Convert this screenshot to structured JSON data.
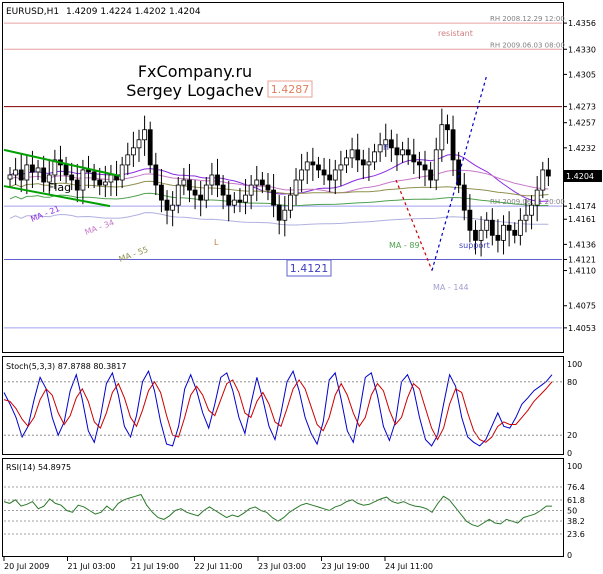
{
  "header": {
    "symbol": "EURUSD,H1",
    "ohlc": "1.4209 1.4224 1.4202 1.4204"
  },
  "watermark": {
    "line1": "FxCompany.ru",
    "line2": "Sergey Logachev"
  },
  "price_axis": {
    "ticks": [
      "1.4356",
      "1.4330",
      "1.4305",
      "1.4273",
      "1.4257",
      "1.4232",
      "1.4204",
      "1.4174",
      "1.4161",
      "1.4136",
      "1.4121",
      "1.4110",
      "1.4075",
      "1.4053"
    ]
  },
  "levels": [
    {
      "price": 1.4356,
      "label": "RH  2008.12.29 12:00",
      "color": "#e8a0a0"
    },
    {
      "price": 1.433,
      "label": "RH  2009.06.03 08:00",
      "color": "#e8a0a0"
    },
    {
      "price": 1.4273,
      "label": "",
      "color": "#800000"
    },
    {
      "price": 1.4174,
      "label": "RH  2009.06.11 20:00",
      "color": "#a0a0f0"
    },
    {
      "price": 1.4121,
      "label": "",
      "color": "#6060d0"
    },
    {
      "price": 1.4053,
      "label": "",
      "color": "#a0a0f0"
    }
  ],
  "annotations": {
    "resistant": "resistant",
    "support": "support",
    "flag": "Flag",
    "h": "H",
    "l": "L",
    "box_high": "1.4287",
    "box_low": "1.4121",
    "ma21": "MA - 21",
    "ma34": "MA - 34",
    "ma55": "MA - 55",
    "ma89": "MA - 89",
    "ma144": "MA - 144"
  },
  "stoch": {
    "title": "Stoch(5,3,3) 87.8788 80.3817",
    "ticks": [
      "100",
      "80",
      "20",
      "0"
    ]
  },
  "rsi": {
    "title": "RSI(14) 54.8975",
    "ticks": [
      "100",
      "76.4",
      "61.8",
      "50",
      "38.2",
      "23.6",
      "0"
    ]
  },
  "time_axis": [
    "20 Jul 2009",
    "21 Jul 03:00",
    "21 Jul 19:00",
    "22 Jul 11:00",
    "23 Jul 03:00",
    "23 Jul 19:00",
    "24 Jul 11:00"
  ],
  "colors": {
    "bullish": "#000000",
    "ma21": "#8a2be2",
    "ma34": "#c878c8",
    "ma55": "#909050",
    "ma89": "#50a050",
    "ma144": "#b0b0e0",
    "stoch_main": "#0000cc",
    "stoch_signal": "#cc0000",
    "rsi": "#2a7a2a",
    "forecast_down": "#cc0000",
    "forecast_up": "#0000cc",
    "channel": "#00a000"
  },
  "chart_data": [
    {
      "type": "candlestick",
      "title": "EURUSD,H1",
      "ylim": [
        1.403,
        1.4375
      ],
      "close_series": [
        1.4205,
        1.421,
        1.42,
        1.4215,
        1.4208,
        1.4212,
        1.4198,
        1.4205,
        1.422,
        1.4215,
        1.4205,
        1.42,
        1.419,
        1.421,
        1.4208,
        1.42,
        1.4195,
        1.4198,
        1.4205,
        1.42,
        1.4215,
        1.4225,
        1.4232,
        1.424,
        1.425,
        1.4215,
        1.4195,
        1.418,
        1.417,
        1.4175,
        1.4195,
        1.42,
        1.419,
        1.4185,
        1.418,
        1.4195,
        1.4205,
        1.4195,
        1.4185,
        1.4175,
        1.418,
        1.4178,
        1.4185,
        1.4195,
        1.42,
        1.4195,
        1.419,
        1.4175,
        1.416,
        1.417,
        1.4185,
        1.42,
        1.421,
        1.4218,
        1.4215,
        1.421,
        1.4205,
        1.42,
        1.421,
        1.4215,
        1.4222,
        1.423,
        1.422,
        1.4215,
        1.4218,
        1.4228,
        1.4235,
        1.424,
        1.4232,
        1.4225,
        1.423,
        1.4225,
        1.4218,
        1.4215,
        1.421,
        1.42,
        1.423,
        1.4255,
        1.425,
        1.422,
        1.4195,
        1.417,
        1.415,
        1.414,
        1.415,
        1.416,
        1.4145,
        1.414,
        1.4155,
        1.415,
        1.4145,
        1.416,
        1.4165,
        1.4175,
        1.419,
        1.421,
        1.4204
      ]
    },
    {
      "type": "line",
      "title": "Stoch(5,3,3) 87.8788 80.3817",
      "ylim": [
        0,
        100
      ],
      "series": [
        {
          "name": "Stoch(5,3,3)",
          "values": [
            68,
            55,
            40,
            18,
            30,
            60,
            85,
            72,
            40,
            20,
            35,
            70,
            88,
            60,
            25,
            12,
            40,
            78,
            90,
            65,
            30,
            18,
            42,
            80,
            92,
            70,
            35,
            10,
            8,
            30,
            72,
            88,
            70,
            45,
            28,
            55,
            85,
            90,
            70,
            40,
            22,
            55,
            85,
            60,
            30,
            15,
            45,
            80,
            92,
            70,
            40,
            22,
            10,
            35,
            82,
            90,
            60,
            25,
            12,
            45,
            85,
            90,
            65,
            30,
            14,
            35,
            80,
            88,
            72,
            40,
            15,
            8,
            20,
            55,
            88,
            75,
            40,
            18,
            12,
            8,
            15,
            30,
            45,
            30,
            28,
            40,
            55,
            62,
            70,
            75,
            80,
            88
          ]
        },
        {
          "name": "",
          "values": [
            60,
            58,
            50,
            38,
            30,
            40,
            60,
            72,
            65,
            45,
            32,
            42,
            62,
            72,
            58,
            35,
            28,
            45,
            68,
            78,
            62,
            40,
            30,
            48,
            70,
            80,
            68,
            42,
            20,
            18,
            40,
            65,
            75,
            65,
            48,
            42,
            60,
            78,
            82,
            68,
            45,
            40,
            58,
            68,
            55,
            35,
            30,
            50,
            72,
            82,
            72,
            52,
            32,
            25,
            40,
            65,
            78,
            65,
            45,
            30,
            40,
            65,
            78,
            70,
            48,
            32,
            40,
            62,
            78,
            72,
            50,
            28,
            15,
            28,
            55,
            72,
            68,
            45,
            25,
            15,
            12,
            18,
            30,
            35,
            32,
            32,
            40,
            48,
            58,
            65,
            72,
            80
          ]
        }
      ]
    },
    {
      "type": "line",
      "title": "RSI(14) 54.8975",
      "ylim": [
        0,
        100
      ],
      "series": [
        {
          "name": "RSI(14)",
          "values": [
            60,
            58,
            62,
            55,
            57,
            60,
            52,
            55,
            63,
            58,
            56,
            50,
            48,
            56,
            54,
            50,
            46,
            48,
            55,
            50,
            58,
            62,
            64,
            66,
            68,
            56,
            48,
            42,
            40,
            44,
            50,
            52,
            48,
            46,
            44,
            50,
            54,
            50,
            46,
            42,
            45,
            43,
            47,
            52,
            54,
            50,
            48,
            42,
            38,
            42,
            48,
            52,
            56,
            58,
            56,
            54,
            52,
            50,
            54,
            56,
            60,
            62,
            58,
            56,
            57,
            60,
            63,
            65,
            60,
            58,
            60,
            57,
            55,
            54,
            52,
            48,
            58,
            66,
            62,
            54,
            46,
            38,
            34,
            32,
            36,
            40,
            36,
            35,
            40,
            38,
            36,
            42,
            44,
            46,
            50,
            55,
            54.9
          ]
        }
      ]
    }
  ]
}
